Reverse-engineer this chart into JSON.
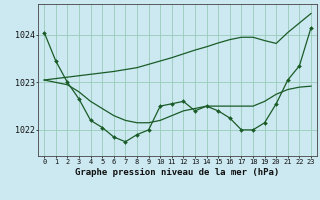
{
  "title": "Graphe pression niveau de la mer (hPa)",
  "bg_color": "#cce8f0",
  "grid_color": "#99ccbb",
  "line_color": "#1a5c28",
  "x_ticks": [
    0,
    1,
    2,
    3,
    4,
    5,
    6,
    7,
    8,
    9,
    10,
    11,
    12,
    13,
    14,
    15,
    16,
    17,
    18,
    19,
    20,
    21,
    22,
    23
  ],
  "ylim": [
    1021.45,
    1024.65
  ],
  "yticks": [
    1022,
    1023,
    1024
  ],
  "hourly": [
    1024.05,
    1023.45,
    1023.0,
    1022.65,
    1022.2,
    1022.05,
    1021.85,
    1021.75,
    1021.9,
    1022.0,
    1022.5,
    1022.55,
    1022.6,
    1022.4,
    1022.5,
    1022.4,
    1022.25,
    1022.0,
    1022.0,
    1022.15,
    1022.55,
    1023.05,
    1023.35,
    1024.15
  ],
  "smooth": [
    1023.05,
    1023.0,
    1022.95,
    1022.8,
    1022.6,
    1022.45,
    1022.3,
    1022.2,
    1022.15,
    1022.15,
    1022.2,
    1022.3,
    1022.4,
    1022.45,
    1022.5,
    1022.5,
    1022.5,
    1022.5,
    1022.5,
    1022.6,
    1022.75,
    1022.85,
    1022.9,
    1022.92
  ],
  "trend": [
    1023.05,
    1023.08,
    1023.11,
    1023.14,
    1023.17,
    1023.2,
    1023.23,
    1023.27,
    1023.31,
    1023.38,
    1023.45,
    1023.52,
    1023.6,
    1023.68,
    1023.75,
    1023.83,
    1023.9,
    1023.95,
    1023.95,
    1023.88,
    1023.82,
    1024.05,
    1024.25,
    1024.45
  ]
}
